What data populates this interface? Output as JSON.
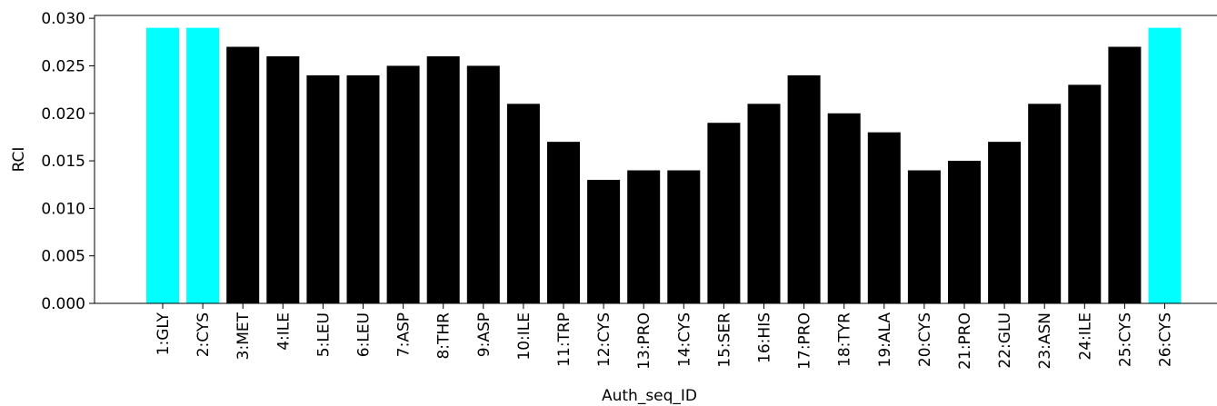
{
  "chart_data": {
    "type": "bar",
    "xlabel": "Auth_seq_ID",
    "ylabel": "RCI",
    "ylim": [
      0,
      0.0303
    ],
    "yticks": [
      "0.000",
      "0.005",
      "0.010",
      "0.015",
      "0.020",
      "0.025",
      "0.030"
    ],
    "grid": false,
    "categories": [
      "1:GLY",
      "2:CYS",
      "3:MET",
      "4:ILE",
      "5:LEU",
      "6:LEU",
      "7:ASP",
      "8:THR",
      "9:ASP",
      "10:ILE",
      "11:TRP",
      "12:CYS",
      "13:PRO",
      "14:CYS",
      "15:SER",
      "16:HIS",
      "17:PRO",
      "18:TYR",
      "19:ALA",
      "20:CYS",
      "21:PRO",
      "22:GLU",
      "23:ASN",
      "24:ILE",
      "25:CYS",
      "26:CYS"
    ],
    "values": [
      0.029,
      0.029,
      0.027,
      0.026,
      0.024,
      0.024,
      0.025,
      0.026,
      0.025,
      0.021,
      0.017,
      0.013,
      0.014,
      0.014,
      0.019,
      0.021,
      0.024,
      0.02,
      0.018,
      0.014,
      0.015,
      0.017,
      0.021,
      0.023,
      0.027,
      0.029
    ],
    "colors": [
      "#00ffff",
      "#00ffff",
      "#000000",
      "#000000",
      "#000000",
      "#000000",
      "#000000",
      "#000000",
      "#000000",
      "#000000",
      "#000000",
      "#000000",
      "#000000",
      "#000000",
      "#000000",
      "#000000",
      "#000000",
      "#000000",
      "#000000",
      "#000000",
      "#000000",
      "#000000",
      "#000000",
      "#000000",
      "#000000",
      "#00ffff"
    ]
  }
}
